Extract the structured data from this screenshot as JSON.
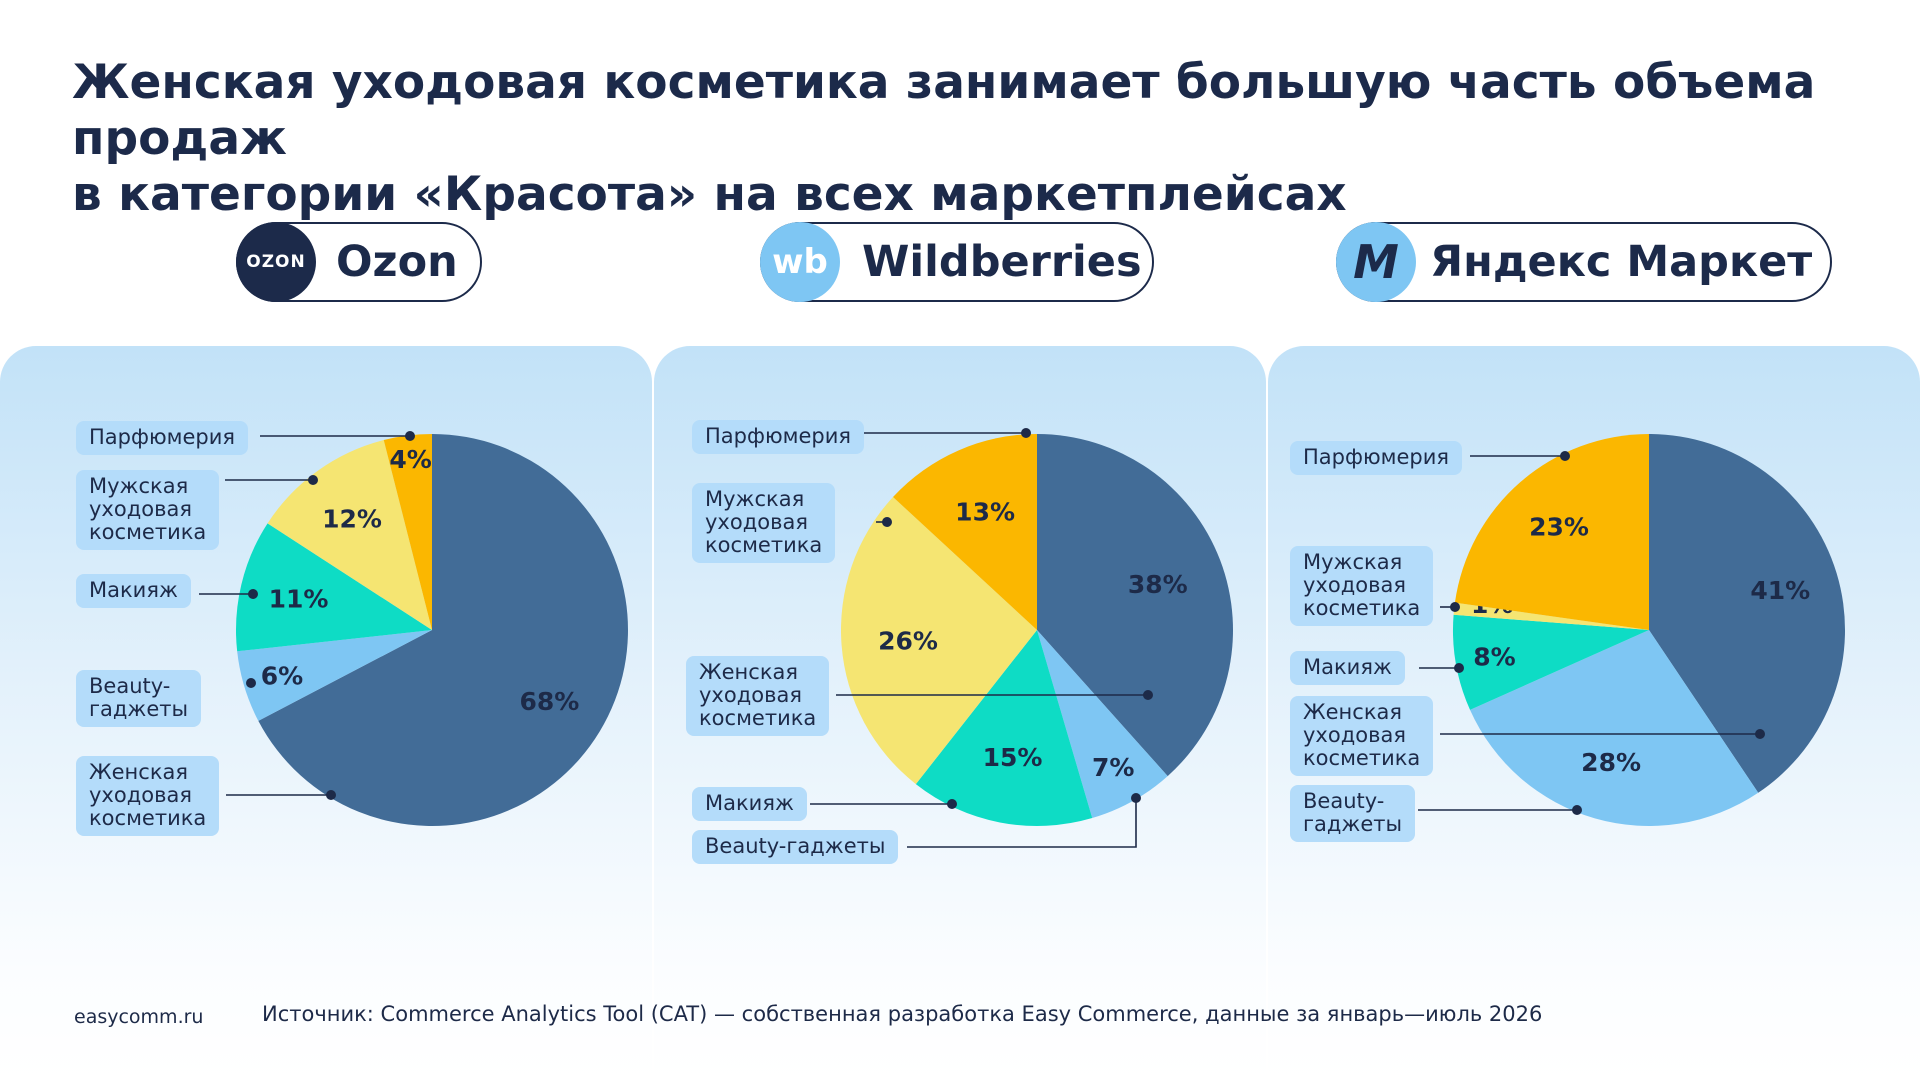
{
  "title": {
    "line1": "Женская уходовая косметика занимает большую часть объема продаж",
    "line2": "в категории «Красота» на всех маркетплейсах"
  },
  "colors": {
    "dark_blue": "#426c97",
    "light_blue": "#7ec6f3",
    "teal": "#0edcc5",
    "light_yellow": "#f5e572",
    "orange": "#fbb700",
    "label_bg": "#b4dcfa",
    "text": "#1d2a48"
  },
  "marketplaces": [
    {
      "name": "Ozon",
      "logo_text": "OZON",
      "logo_color": "#1c2a4a",
      "icon": "ozon-logo"
    },
    {
      "name": "Wildberries",
      "logo_text": "wb",
      "logo_color": "#7ec6f3",
      "icon": "wildberries-logo"
    },
    {
      "name": "Яндекс Маркет",
      "logo_text": "M",
      "logo_color": "#7ec6f3",
      "icon": "yandex-market-logo"
    }
  ],
  "chart_data": [
    {
      "type": "pie",
      "title": "Ozon",
      "categories": [
        "Женская уходовая косметика",
        "Beauty-гаджеты",
        "Макияж",
        "Мужская уходовая косметика",
        "Парфюмерия"
      ],
      "values": [
        68,
        6,
        11,
        12,
        4
      ],
      "value_labels": [
        "68%",
        "6%",
        "11%",
        "12%",
        "4%"
      ],
      "colors": [
        "#426c97",
        "#7ec6f3",
        "#0edcc5",
        "#f5e572",
        "#fbb700"
      ],
      "label_texts": [
        "Женская\nуходовая\nкосметика",
        "Beauty-\nгаджеты",
        "Макияж",
        "Мужская\nуходовая\nкосметика",
        "Парфюмерия"
      ]
    },
    {
      "type": "pie",
      "title": "Wildberries",
      "categories": [
        "Женская уходовая косметика",
        "Beauty-гаджеты",
        "Макияж",
        "Мужская уходовая косметика",
        "Парфюмерия"
      ],
      "values": [
        38,
        7,
        15,
        26,
        13
      ],
      "value_labels": [
        "38%",
        "7%",
        "15%",
        "26%",
        "13%"
      ],
      "colors": [
        "#426c97",
        "#7ec6f3",
        "#0edcc5",
        "#f5e572",
        "#fbb700"
      ],
      "label_texts": [
        "Женская\nуходовая\nкосметика",
        "Beauty-гаджеты",
        "Макияж",
        "Мужская\nуходовая\nкосметика",
        "Парфюмерия"
      ]
    },
    {
      "type": "pie",
      "title": "Яндекс Маркет",
      "categories": [
        "Женская уходовая косметика",
        "Beauty-гаджеты",
        "Макияж",
        "Мужская уходовая косметика",
        "Парфюмерия"
      ],
      "values": [
        41,
        28,
        8,
        1,
        23
      ],
      "value_labels": [
        "41%",
        "28%",
        "8%",
        "1%",
        "23%"
      ],
      "colors": [
        "#426c97",
        "#7ec6f3",
        "#0edcc5",
        "#f5e572",
        "#fbb700"
      ],
      "label_texts": [
        "Женская\nуходовая\nкосметика",
        "Beauty-\nгаджеты",
        "Макияж",
        "Мужская\nуходовая\nкосметика",
        "Парфюмерия"
      ]
    }
  ],
  "footer": {
    "site": "easycomm.ru",
    "source": "Источник: Commerce Analytics Tool (CAT) — собственная разработка Easy Commerce, данные за январь—июль 2026"
  }
}
